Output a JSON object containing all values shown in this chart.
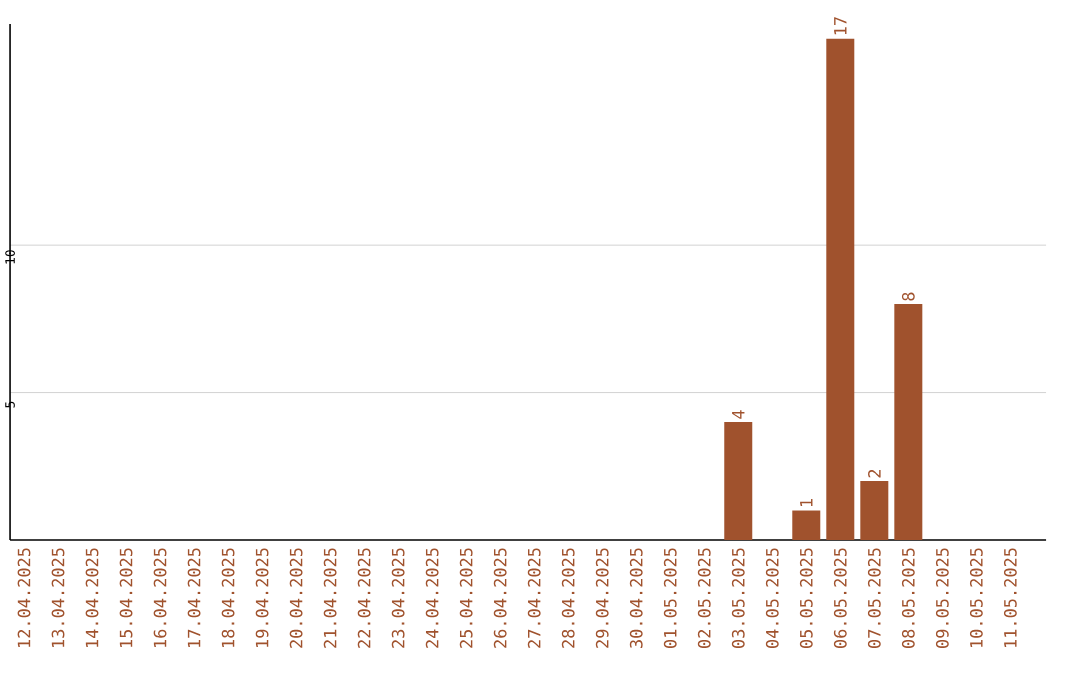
{
  "chart_data": {
    "type": "bar",
    "categories": [
      "12.04.2025",
      "13.04.2025",
      "14.04.2025",
      "15.04.2025",
      "16.04.2025",
      "17.04.2025",
      "18.04.2025",
      "19.04.2025",
      "20.04.2025",
      "21.04.2025",
      "22.04.2025",
      "23.04.2025",
      "24.04.2025",
      "25.04.2025",
      "26.04.2025",
      "27.04.2025",
      "28.04.2025",
      "29.04.2025",
      "30.04.2025",
      "01.05.2025",
      "02.05.2025",
      "03.05.2025",
      "04.05.2025",
      "05.05.2025",
      "06.05.2025",
      "07.05.2025",
      "08.05.2025",
      "09.05.2025",
      "10.05.2025",
      "11.05.2025"
    ],
    "values": [
      0,
      0,
      0,
      0,
      0,
      0,
      0,
      0,
      0,
      0,
      0,
      0,
      0,
      0,
      0,
      0,
      0,
      0,
      0,
      0,
      0,
      4,
      0,
      1,
      17,
      2,
      8,
      0,
      0,
      0
    ],
    "value_labels": [
      null,
      null,
      null,
      null,
      null,
      null,
      null,
      null,
      null,
      null,
      null,
      null,
      null,
      null,
      null,
      null,
      null,
      null,
      null,
      null,
      null,
      "4",
      null,
      "1",
      "17",
      "2",
      "8",
      null,
      null,
      null
    ],
    "color": "#a0522d",
    "ylim": [
      0,
      17.5
    ],
    "yticks": [
      5,
      10
    ],
    "grid": "y"
  }
}
